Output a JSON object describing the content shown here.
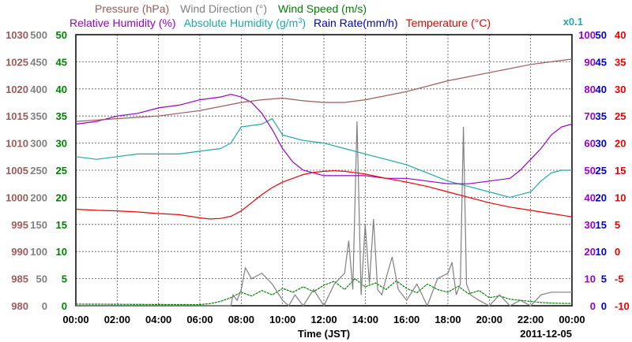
{
  "chart_data": {
    "type": "line",
    "xlabel": "Time (JST)",
    "date_label": "2011-12-05",
    "x_ticks": [
      "00:00",
      "02:00",
      "04:00",
      "06:00",
      "08:00",
      "10:00",
      "12:00",
      "14:00",
      "16:00",
      "18:00",
      "20:00",
      "22:00",
      "00:00"
    ],
    "x_range_hours": [
      0,
      24
    ],
    "grid": true,
    "legend_row1": [
      {
        "label": "Pressure (hPa)",
        "color": "#a05a5a"
      },
      {
        "label": "Wind Direction (°)",
        "color": "#808080"
      },
      {
        "label": "Wind Speed (m/s)",
        "color": "#008000"
      }
    ],
    "legend_row2": [
      {
        "label": "Relative Humidity (%)",
        "color": "#9900cc"
      },
      {
        "label": "Absolute Humidity (g/m",
        "color": "#20a8a8",
        "sup": "3",
        "after": ")"
      },
      {
        "label": "Rain Rate(mm/h)",
        "color": "#0000cc"
      },
      {
        "label": "Temperature (°C)",
        "color": "#ee0000"
      }
    ],
    "axis_note": "x0.1",
    "axes": {
      "pressure": {
        "color": "#a05a5a",
        "range": [
          980,
          1030
        ],
        "ticks": [
          "1030",
          "1025",
          "1020",
          "1015",
          "1010",
          "1005",
          "1000",
          "995",
          "990",
          "985",
          "980"
        ]
      },
      "wind_direction": {
        "color": "#808080",
        "range": [
          0,
          500
        ],
        "ticks": [
          "500",
          "450",
          "400",
          "350",
          "300",
          "250",
          "200",
          "150",
          "100",
          "50",
          "0"
        ]
      },
      "wind_speed": {
        "color": "#008000",
        "range": [
          0,
          50
        ],
        "ticks": [
          "50",
          "45",
          "40",
          "35",
          "30",
          "25",
          "20",
          "15",
          "10",
          "5",
          "0"
        ]
      },
      "relative_humidity": {
        "color": "#9900cc",
        "range": [
          0,
          100
        ],
        "ticks": [
          "100",
          "90",
          "80",
          "70",
          "60",
          "50",
          "40",
          "30",
          "20",
          "10",
          "0"
        ]
      },
      "absolute_humidity": {
        "color": "#20a8a8",
        "range": [
          0,
          50
        ],
        "ticks": [
          "50",
          "45",
          "40",
          "35",
          "30",
          "25",
          "20",
          "15",
          "10",
          "5",
          "0"
        ]
      },
      "rain_rate": {
        "color": "#0000cc",
        "range": [
          0,
          50
        ],
        "ticks": [
          "50",
          "45",
          "40",
          "35",
          "30",
          "25",
          "20",
          "15",
          "10",
          "5",
          "0"
        ]
      },
      "temperature": {
        "color": "#ee0000",
        "range": [
          -10,
          40
        ],
        "ticks": [
          "40",
          "35",
          "30",
          "25",
          "20",
          "15",
          "10",
          "5",
          "0",
          "-5",
          "-10"
        ]
      }
    },
    "series": [
      {
        "name": "Pressure (hPa)",
        "axis": "pressure",
        "color": "#a05a5a",
        "x": [
          0,
          2,
          4,
          6,
          8,
          9,
          10,
          11,
          12,
          13,
          14,
          16,
          18,
          20,
          22,
          23,
          24
        ],
        "y": [
          1014.0,
          1014.5,
          1015.0,
          1016.0,
          1017.5,
          1018.0,
          1018.3,
          1017.8,
          1017.5,
          1017.5,
          1018.0,
          1019.5,
          1021.5,
          1023.0,
          1024.5,
          1025.0,
          1025.5
        ]
      },
      {
        "name": "Relative Humidity (%)",
        "axis": "relative_humidity",
        "color": "#9900cc",
        "x": [
          0,
          1,
          2,
          3,
          4,
          5,
          6,
          7,
          7.5,
          8,
          8.5,
          9,
          9.5,
          10,
          10.5,
          11,
          12,
          13,
          14,
          15,
          16,
          17,
          18,
          19,
          20,
          21,
          21.5,
          22,
          22.5,
          23,
          23.5,
          24
        ],
        "y": [
          67,
          68,
          70,
          71,
          73,
          74,
          76,
          77,
          78,
          77,
          75,
          71,
          65,
          58,
          53,
          50,
          48,
          48,
          48,
          47,
          47,
          46,
          45,
          45,
          46,
          47,
          50,
          54,
          58,
          63,
          66,
          67
        ]
      },
      {
        "name": "Absolute Humidity (g/m3)",
        "axis": "absolute_humidity",
        "color": "#20a8a8",
        "x": [
          0,
          1,
          2,
          3,
          4,
          5,
          6,
          7,
          7.5,
          8,
          9,
          9.5,
          10,
          11,
          12,
          13,
          14,
          15,
          16,
          17,
          18,
          19,
          20,
          21,
          22,
          22.5,
          23,
          23.5,
          24
        ],
        "y": [
          27.5,
          27.0,
          27.5,
          28.0,
          28.0,
          28.0,
          28.5,
          29.0,
          30.0,
          33.0,
          33.5,
          34.5,
          31.5,
          30.5,
          30.0,
          29.0,
          28.0,
          27.0,
          26.0,
          24.5,
          23.0,
          22.0,
          21.0,
          20.0,
          21.0,
          23.0,
          24.5,
          25.0,
          25.0
        ]
      },
      {
        "name": "Temperature (°C)",
        "axis": "temperature",
        "color": "#ee0000",
        "x": [
          0,
          1,
          2,
          3,
          4,
          5,
          6,
          6.5,
          7,
          7.5,
          8,
          8.5,
          9,
          9.5,
          10,
          10.5,
          11,
          11.5,
          12,
          12.5,
          13,
          14,
          15,
          16,
          17,
          18,
          19,
          20,
          21,
          22,
          23,
          24
        ],
        "y": [
          7.8,
          7.6,
          7.5,
          7.3,
          7.0,
          6.8,
          6.2,
          6.0,
          6.1,
          6.5,
          7.5,
          9.0,
          10.5,
          11.8,
          12.8,
          13.5,
          14.2,
          14.6,
          14.8,
          14.9,
          14.8,
          14.3,
          13.5,
          12.8,
          12.0,
          11.0,
          10.0,
          9.0,
          8.2,
          7.6,
          7.0,
          6.4
        ]
      },
      {
        "name": "Wind Direction (°)",
        "axis": "wind_direction",
        "color": "#808080",
        "x": [
          0,
          7.5,
          7.6,
          7.8,
          8.0,
          8.2,
          8.5,
          9.0,
          9.5,
          10.0,
          10.3,
          10.6,
          11.0,
          11.5,
          12.0,
          12.5,
          13.0,
          13.2,
          13.4,
          13.6,
          13.8,
          14.0,
          14.2,
          14.4,
          14.6,
          14.8,
          15.0,
          15.3,
          15.6,
          16.0,
          16.5,
          17.0,
          17.5,
          18.0,
          18.2,
          18.4,
          18.6,
          18.75,
          18.9,
          19.1,
          19.5,
          20.0,
          20.5,
          21.0,
          21.5,
          22.0,
          22.5,
          23.0,
          24.0
        ],
        "y": [
          0,
          0,
          20,
          10,
          30,
          70,
          50,
          60,
          40,
          10,
          0,
          20,
          0,
          30,
          0,
          40,
          60,
          120,
          30,
          340,
          20,
          150,
          40,
          160,
          30,
          20,
          50,
          90,
          30,
          10,
          40,
          0,
          50,
          60,
          80,
          20,
          40,
          330,
          40,
          20,
          10,
          0,
          20,
          0,
          10,
          0,
          20,
          25,
          25
        ]
      },
      {
        "name": "Wind Speed (m/s)",
        "axis": "wind_speed",
        "color": "#008000",
        "x": [
          0,
          6,
          6.5,
          7,
          7.5,
          8,
          8.5,
          9,
          9.5,
          10,
          10.5,
          11,
          11.5,
          12,
          12.5,
          13,
          13.5,
          14,
          14.5,
          15,
          15.5,
          16,
          16.5,
          17,
          17.5,
          18,
          18.5,
          19,
          19.5,
          20,
          20.5,
          21,
          21.5,
          22,
          22.5,
          23,
          24
        ],
        "y": [
          0.3,
          0.2,
          0.4,
          0.8,
          1.5,
          2.5,
          1.8,
          2.8,
          2.0,
          3.2,
          2.5,
          3.5,
          2.6,
          3.8,
          4.5,
          3.0,
          5.0,
          3.5,
          4.2,
          3.0,
          4.6,
          3.2,
          2.4,
          4.0,
          3.0,
          2.5,
          3.6,
          2.2,
          2.8,
          1.5,
          1.8,
          1.2,
          1.0,
          0.8,
          0.6,
          0.5,
          0.4
        ]
      }
    ]
  }
}
